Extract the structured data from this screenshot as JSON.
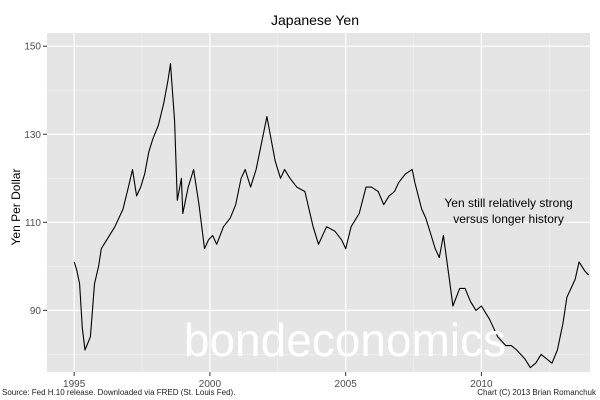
{
  "chart_data": {
    "type": "line",
    "title": "Japanese Yen",
    "xlabel": "",
    "ylabel": "Yen Per Dollar",
    "xlim": [
      1994.0,
      2014.0
    ],
    "ylim": [
      76,
      153
    ],
    "x_ticks": [
      1995,
      2000,
      2005,
      2010
    ],
    "x_tick_labels": [
      "1995",
      "2000",
      "2005",
      "2010"
    ],
    "y_ticks": [
      90,
      110,
      130,
      150
    ],
    "y_tick_labels": [
      "90",
      "110",
      "130",
      "150"
    ],
    "grid": true,
    "legend": "none",
    "annotation": {
      "lines": [
        "Yen still relatively strong",
        "versus longer history"
      ],
      "x": 2011.0,
      "y": 113.5
    },
    "series": [
      {
        "x": [
          1995.0,
          1995.1,
          1995.2,
          1995.3,
          1995.4,
          1995.6,
          1995.75,
          1995.9,
          1996.0,
          1996.2,
          1996.5,
          1996.8,
          1997.0,
          1997.15,
          1997.3,
          1997.45,
          1997.6,
          1997.75,
          1997.9,
          1998.1,
          1998.3,
          1998.45,
          1998.55,
          1998.7,
          1998.8,
          1998.95,
          1999.0,
          1999.2,
          1999.4,
          1999.6,
          1999.8,
          1999.95,
          2000.1,
          2000.25,
          2000.5,
          2000.75,
          2000.95,
          2001.15,
          2001.3,
          2001.5,
          2001.7,
          2001.9,
          2002.0,
          2002.1,
          2002.25,
          2002.4,
          2002.6,
          2002.75,
          2002.95,
          2003.2,
          2003.5,
          2003.8,
          2004.0,
          2004.3,
          2004.6,
          2004.85,
          2005.0,
          2005.2,
          2005.5,
          2005.75,
          2005.95,
          2006.2,
          2006.4,
          2006.6,
          2006.8,
          2006.95,
          2007.2,
          2007.45,
          2007.55,
          2007.8,
          2007.95,
          2008.15,
          2008.3,
          2008.45,
          2008.6,
          2008.8,
          2008.95,
          2009.2,
          2009.4,
          2009.6,
          2009.8,
          2010.0,
          2010.3,
          2010.6,
          2010.9,
          2011.1,
          2011.3,
          2011.6,
          2011.8,
          2012.0,
          2012.2,
          2012.4,
          2012.6,
          2012.8,
          2013.0,
          2013.15,
          2013.3,
          2013.45,
          2013.6,
          2013.8,
          2013.95
        ],
        "y": [
          101,
          99,
          96,
          86,
          81,
          84,
          96,
          100,
          104,
          106,
          109,
          113,
          118,
          122,
          116,
          118,
          121,
          126,
          129,
          132,
          137,
          142,
          146,
          133,
          115,
          120,
          112,
          118,
          122,
          114,
          104,
          106,
          107,
          105,
          109,
          111,
          114,
          120,
          122,
          118,
          122,
          128,
          131,
          134,
          129,
          124,
          120,
          122,
          120,
          118,
          117,
          109,
          105,
          109,
          108,
          106,
          104,
          109,
          112,
          118,
          118,
          117,
          114,
          116,
          117,
          119,
          121,
          122,
          119,
          113,
          111,
          107,
          104,
          102,
          107,
          98,
          91,
          95,
          95,
          92,
          90,
          91,
          88,
          84,
          82,
          82,
          81,
          79,
          77,
          78,
          80,
          79,
          78,
          81,
          87,
          93,
          95,
          97,
          101,
          99,
          98
        ]
      }
    ]
  },
  "watermark": "bondeconomics",
  "footer": {
    "source": "Source: Fed H.10 release. Downloaded via FRED (St. Louis Fed).",
    "credit": "Chart (C) 2013 Brian Romanchuk"
  },
  "colors": {
    "panel": "#e5e5e5",
    "grid": "#ffffff",
    "line": "#000000",
    "axis_text": "#4d4d4d",
    "watermark": "#ffffff"
  }
}
